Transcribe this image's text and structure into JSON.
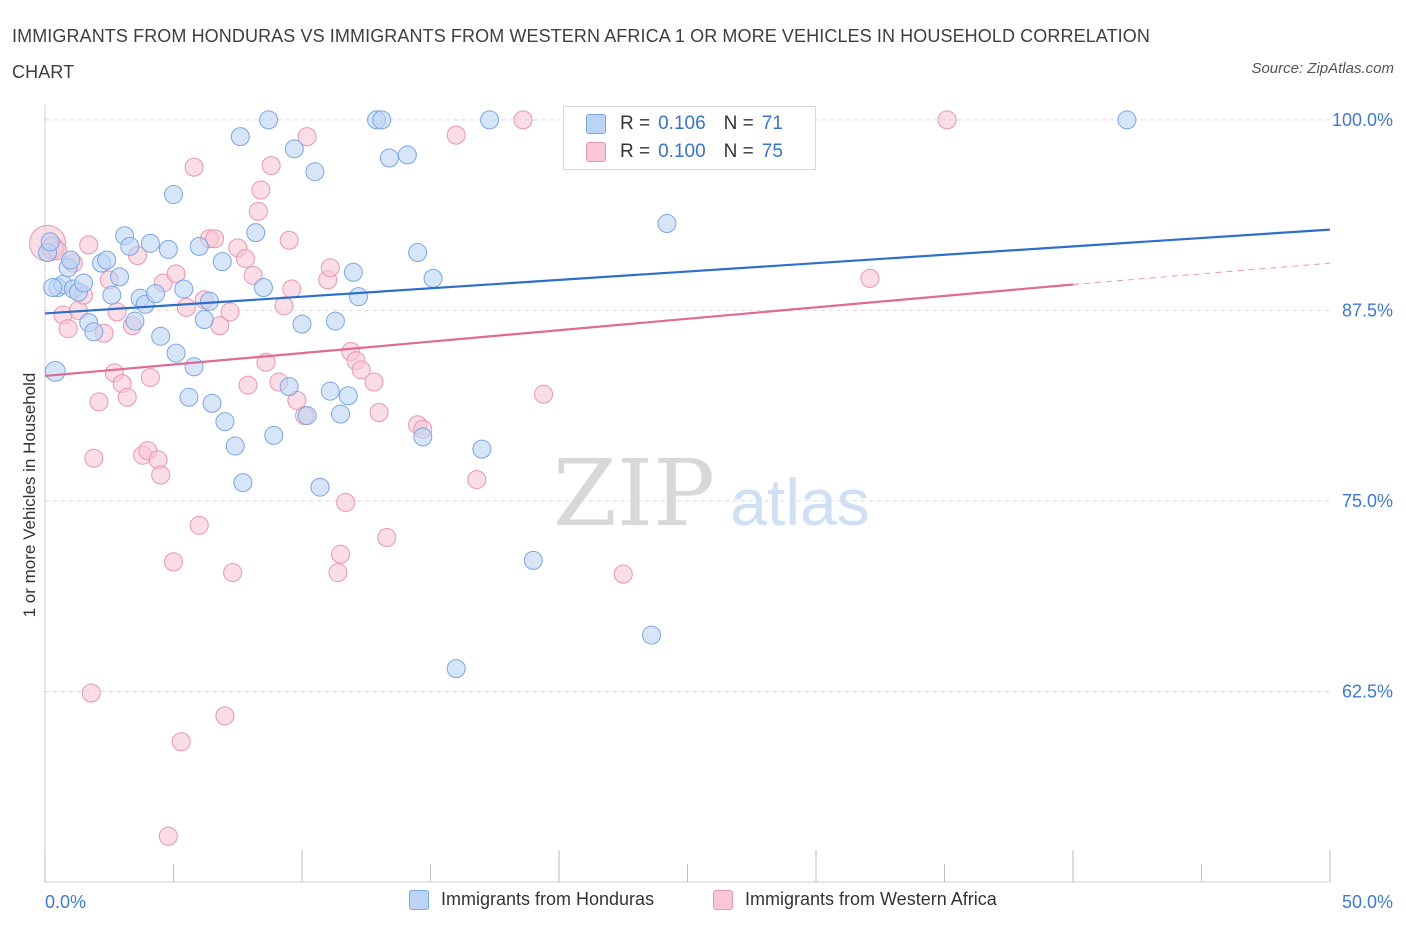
{
  "title": "IMMIGRANTS FROM HONDURAS VS IMMIGRANTS FROM WESTERN AFRICA 1 OR MORE VEHICLES IN HOUSEHOLD CORRELATION CHART",
  "source": "Source: ZipAtlas.com",
  "watermark": {
    "zip": "ZIP",
    "atlas": "atlas"
  },
  "legend": {
    "rows": [
      {
        "r_label": "R =",
        "r_value": "0.106",
        "n_label": "N =",
        "n_value": "71",
        "color": "#a9c8f2",
        "border": "#6a9be0"
      },
      {
        "r_label": "R =",
        "r_value": "0.100",
        "n_label": "N =",
        "n_value": "75",
        "color": "#f7bfd0",
        "border": "#e58aa8"
      }
    ]
  },
  "bottom_legend": [
    "Immigrants from Honduras",
    "Immigrants from Western Africa"
  ],
  "colors": {
    "blue_fill": "#bcd4f5",
    "blue_stroke": "#7aa6e3",
    "blue_line": "#2f6fcc",
    "pink_fill": "#f8c6d5",
    "pink_stroke": "#e896b0",
    "pink_line": "#e06a95",
    "tick_label": "#3f7ad0",
    "grid": "#d9d9d9"
  },
  "chart_data": {
    "type": "scatter",
    "title": "IMMIGRANTS FROM HONDURAS VS IMMIGRANTS FROM WESTERN AFRICA 1 OR MORE VEHICLES IN HOUSEHOLD CORRELATION CHART",
    "xlabel": "",
    "ylabel": "1 or more Vehicles in Household",
    "xlim": [
      0,
      50
    ],
    "ylim": [
      50,
      101.5
    ],
    "x_tick_labels": [
      "0.0%",
      "50.0%"
    ],
    "y_tick_labels": [
      "100.0%",
      "87.5%",
      "75.0%",
      "62.5%"
    ],
    "y_ticks": [
      100,
      87.5,
      75,
      62.5
    ],
    "grid": true,
    "legend_placement": "top-center",
    "series": [
      {
        "name": "Immigrants from Honduras",
        "trend": {
          "x": [
            0,
            50
          ],
          "y": [
            87.3,
            92.8
          ]
        },
        "points": [
          {
            "x": 0.1,
            "y": 91.3,
            "s": 1
          },
          {
            "x": 0.2,
            "y": 92.0,
            "s": 1
          },
          {
            "x": 0.4,
            "y": 83.5,
            "s": 1.1
          },
          {
            "x": 0.5,
            "y": 89.0,
            "s": 1
          },
          {
            "x": 0.7,
            "y": 89.2,
            "s": 1
          },
          {
            "x": 0.9,
            "y": 90.3,
            "s": 1
          },
          {
            "x": 1.1,
            "y": 88.9,
            "s": 1
          },
          {
            "x": 1.3,
            "y": 88.7,
            "s": 1
          },
          {
            "x": 1.5,
            "y": 89.3,
            "s": 1
          },
          {
            "x": 1.7,
            "y": 86.7,
            "s": 1
          },
          {
            "x": 1.9,
            "y": 86.1,
            "s": 1
          },
          {
            "x": 2.2,
            "y": 90.6,
            "s": 1
          },
          {
            "x": 2.4,
            "y": 90.8,
            "s": 1
          },
          {
            "x": 2.6,
            "y": 88.5,
            "s": 1
          },
          {
            "x": 2.9,
            "y": 89.7,
            "s": 1
          },
          {
            "x": 3.1,
            "y": 92.4,
            "s": 1
          },
          {
            "x": 3.3,
            "y": 91.7,
            "s": 1
          },
          {
            "x": 3.5,
            "y": 86.8,
            "s": 1
          },
          {
            "x": 3.7,
            "y": 88.3,
            "s": 1
          },
          {
            "x": 3.9,
            "y": 87.9,
            "s": 1
          },
          {
            "x": 4.1,
            "y": 91.9,
            "s": 1
          },
          {
            "x": 4.3,
            "y": 88.6,
            "s": 1
          },
          {
            "x": 4.5,
            "y": 85.8,
            "s": 1
          },
          {
            "x": 4.8,
            "y": 91.5,
            "s": 1
          },
          {
            "x": 5.0,
            "y": 95.1,
            "s": 1
          },
          {
            "x": 5.1,
            "y": 84.7,
            "s": 1
          },
          {
            "x": 5.4,
            "y": 88.9,
            "s": 1
          },
          {
            "x": 5.6,
            "y": 81.8,
            "s": 1
          },
          {
            "x": 5.8,
            "y": 83.8,
            "s": 1
          },
          {
            "x": 6.0,
            "y": 91.7,
            "s": 1
          },
          {
            "x": 6.2,
            "y": 86.9,
            "s": 1
          },
          {
            "x": 6.4,
            "y": 88.1,
            "s": 1
          },
          {
            "x": 6.5,
            "y": 81.4,
            "s": 1
          },
          {
            "x": 6.9,
            "y": 90.7,
            "s": 1
          },
          {
            "x": 7.0,
            "y": 80.2,
            "s": 1
          },
          {
            "x": 7.4,
            "y": 78.6,
            "s": 1
          },
          {
            "x": 7.6,
            "y": 98.9,
            "s": 1
          },
          {
            "x": 7.7,
            "y": 76.2,
            "s": 1
          },
          {
            "x": 8.2,
            "y": 92.6,
            "s": 1
          },
          {
            "x": 8.5,
            "y": 89.0,
            "s": 1
          },
          {
            "x": 8.7,
            "y": 100.0,
            "s": 1
          },
          {
            "x": 8.9,
            "y": 79.3,
            "s": 1
          },
          {
            "x": 9.5,
            "y": 82.5,
            "s": 1
          },
          {
            "x": 9.7,
            "y": 98.1,
            "s": 1
          },
          {
            "x": 10.0,
            "y": 86.6,
            "s": 1
          },
          {
            "x": 10.2,
            "y": 80.6,
            "s": 1
          },
          {
            "x": 10.5,
            "y": 96.6,
            "s": 1
          },
          {
            "x": 10.7,
            "y": 75.9,
            "s": 1
          },
          {
            "x": 11.1,
            "y": 82.2,
            "s": 1
          },
          {
            "x": 11.3,
            "y": 86.8,
            "s": 1
          },
          {
            "x": 11.5,
            "y": 80.7,
            "s": 1
          },
          {
            "x": 11.8,
            "y": 81.9,
            "s": 1
          },
          {
            "x": 12.0,
            "y": 90.0,
            "s": 1
          },
          {
            "x": 12.2,
            "y": 88.4,
            "s": 1
          },
          {
            "x": 12.9,
            "y": 100.0,
            "s": 1
          },
          {
            "x": 13.1,
            "y": 100.0,
            "s": 1
          },
          {
            "x": 13.4,
            "y": 97.5,
            "s": 1
          },
          {
            "x": 14.1,
            "y": 97.7,
            "s": 1
          },
          {
            "x": 14.5,
            "y": 91.3,
            "s": 1
          },
          {
            "x": 14.7,
            "y": 79.2,
            "s": 1
          },
          {
            "x": 15.1,
            "y": 89.6,
            "s": 1
          },
          {
            "x": 16.0,
            "y": 64.0,
            "s": 1
          },
          {
            "x": 17.0,
            "y": 78.4,
            "s": 1
          },
          {
            "x": 17.3,
            "y": 100.0,
            "s": 1
          },
          {
            "x": 19.0,
            "y": 71.1,
            "s": 1
          },
          {
            "x": 23.6,
            "y": 66.2,
            "s": 1
          },
          {
            "x": 24.2,
            "y": 93.2,
            "s": 1
          },
          {
            "x": 27.7,
            "y": 100.0,
            "s": 1
          },
          {
            "x": 42.1,
            "y": 100.0,
            "s": 1
          },
          {
            "x": 0.3,
            "y": 89.0,
            "s": 1
          },
          {
            "x": 1.0,
            "y": 90.8,
            "s": 1
          }
        ]
      },
      {
        "name": "Immigrants from Western Africa",
        "trend": {
          "x": [
            0,
            40
          ],
          "y": [
            83.2,
            89.2
          ]
        },
        "trend_dashed": {
          "x": [
            40,
            50
          ],
          "y": [
            89.2,
            90.6
          ]
        },
        "points": [
          {
            "x": 0.1,
            "y": 91.9,
            "s": 2
          },
          {
            "x": 0.3,
            "y": 91.6,
            "s": 1.2
          },
          {
            "x": 0.5,
            "y": 91.4,
            "s": 1
          },
          {
            "x": 0.7,
            "y": 87.2,
            "s": 1
          },
          {
            "x": 0.9,
            "y": 86.3,
            "s": 1
          },
          {
            "x": 1.1,
            "y": 90.6,
            "s": 1
          },
          {
            "x": 1.3,
            "y": 87.5,
            "s": 1
          },
          {
            "x": 1.5,
            "y": 88.5,
            "s": 1
          },
          {
            "x": 1.7,
            "y": 91.8,
            "s": 1
          },
          {
            "x": 1.9,
            "y": 77.8,
            "s": 1
          },
          {
            "x": 2.1,
            "y": 81.5,
            "s": 1
          },
          {
            "x": 2.3,
            "y": 86.0,
            "s": 1
          },
          {
            "x": 2.5,
            "y": 89.5,
            "s": 1
          },
          {
            "x": 2.7,
            "y": 83.4,
            "s": 1
          },
          {
            "x": 2.8,
            "y": 87.4,
            "s": 1
          },
          {
            "x": 3.0,
            "y": 82.7,
            "s": 1
          },
          {
            "x": 3.2,
            "y": 81.8,
            "s": 1
          },
          {
            "x": 3.4,
            "y": 86.5,
            "s": 1
          },
          {
            "x": 3.6,
            "y": 91.1,
            "s": 1
          },
          {
            "x": 3.8,
            "y": 78.0,
            "s": 1
          },
          {
            "x": 4.0,
            "y": 78.3,
            "s": 1
          },
          {
            "x": 4.1,
            "y": 83.1,
            "s": 1
          },
          {
            "x": 4.4,
            "y": 77.7,
            "s": 1
          },
          {
            "x": 4.5,
            "y": 76.7,
            "s": 1
          },
          {
            "x": 4.6,
            "y": 89.3,
            "s": 1
          },
          {
            "x": 5.0,
            "y": 71.0,
            "s": 1
          },
          {
            "x": 5.1,
            "y": 89.9,
            "s": 1
          },
          {
            "x": 5.3,
            "y": 59.2,
            "s": 1
          },
          {
            "x": 5.5,
            "y": 87.7,
            "s": 1
          },
          {
            "x": 5.8,
            "y": 96.9,
            "s": 1
          },
          {
            "x": 6.0,
            "y": 73.4,
            "s": 1
          },
          {
            "x": 6.2,
            "y": 88.2,
            "s": 1
          },
          {
            "x": 6.4,
            "y": 92.2,
            "s": 1
          },
          {
            "x": 6.6,
            "y": 92.2,
            "s": 1
          },
          {
            "x": 6.8,
            "y": 86.5,
            "s": 1
          },
          {
            "x": 7.0,
            "y": 60.9,
            "s": 1
          },
          {
            "x": 7.2,
            "y": 87.4,
            "s": 1
          },
          {
            "x": 7.3,
            "y": 70.3,
            "s": 1
          },
          {
            "x": 7.5,
            "y": 91.6,
            "s": 1
          },
          {
            "x": 7.8,
            "y": 90.9,
            "s": 1
          },
          {
            "x": 7.9,
            "y": 82.6,
            "s": 1
          },
          {
            "x": 8.1,
            "y": 89.8,
            "s": 1
          },
          {
            "x": 8.3,
            "y": 94.0,
            "s": 1
          },
          {
            "x": 8.4,
            "y": 95.4,
            "s": 1
          },
          {
            "x": 8.6,
            "y": 84.1,
            "s": 1
          },
          {
            "x": 8.8,
            "y": 97.0,
            "s": 1
          },
          {
            "x": 9.1,
            "y": 82.8,
            "s": 1
          },
          {
            "x": 9.3,
            "y": 87.8,
            "s": 1
          },
          {
            "x": 9.5,
            "y": 92.1,
            "s": 1
          },
          {
            "x": 9.6,
            "y": 88.9,
            "s": 1
          },
          {
            "x": 9.8,
            "y": 81.6,
            "s": 1
          },
          {
            "x": 10.1,
            "y": 80.6,
            "s": 1
          },
          {
            "x": 10.2,
            "y": 98.9,
            "s": 1
          },
          {
            "x": 11.0,
            "y": 89.5,
            "s": 1
          },
          {
            "x": 11.1,
            "y": 90.3,
            "s": 1
          },
          {
            "x": 11.4,
            "y": 70.3,
            "s": 1
          },
          {
            "x": 11.5,
            "y": 71.5,
            "s": 1
          },
          {
            "x": 11.7,
            "y": 74.9,
            "s": 1
          },
          {
            "x": 11.9,
            "y": 84.8,
            "s": 1
          },
          {
            "x": 12.1,
            "y": 84.2,
            "s": 1
          },
          {
            "x": 12.3,
            "y": 83.6,
            "s": 1
          },
          {
            "x": 12.8,
            "y": 82.8,
            "s": 1
          },
          {
            "x": 13.0,
            "y": 80.8,
            "s": 1
          },
          {
            "x": 13.3,
            "y": 72.6,
            "s": 1
          },
          {
            "x": 14.5,
            "y": 80.0,
            "s": 1
          },
          {
            "x": 14.7,
            "y": 79.7,
            "s": 1
          },
          {
            "x": 16.0,
            "y": 99.0,
            "s": 1
          },
          {
            "x": 16.8,
            "y": 76.4,
            "s": 1
          },
          {
            "x": 18.6,
            "y": 100.0,
            "s": 1
          },
          {
            "x": 19.4,
            "y": 82.0,
            "s": 1
          },
          {
            "x": 22.5,
            "y": 70.2,
            "s": 1
          },
          {
            "x": 32.1,
            "y": 89.6,
            "s": 1
          },
          {
            "x": 35.1,
            "y": 100.0,
            "s": 1
          },
          {
            "x": 1.8,
            "y": 62.4,
            "s": 1
          },
          {
            "x": 4.8,
            "y": 53.0,
            "s": 1
          }
        ]
      }
    ]
  }
}
